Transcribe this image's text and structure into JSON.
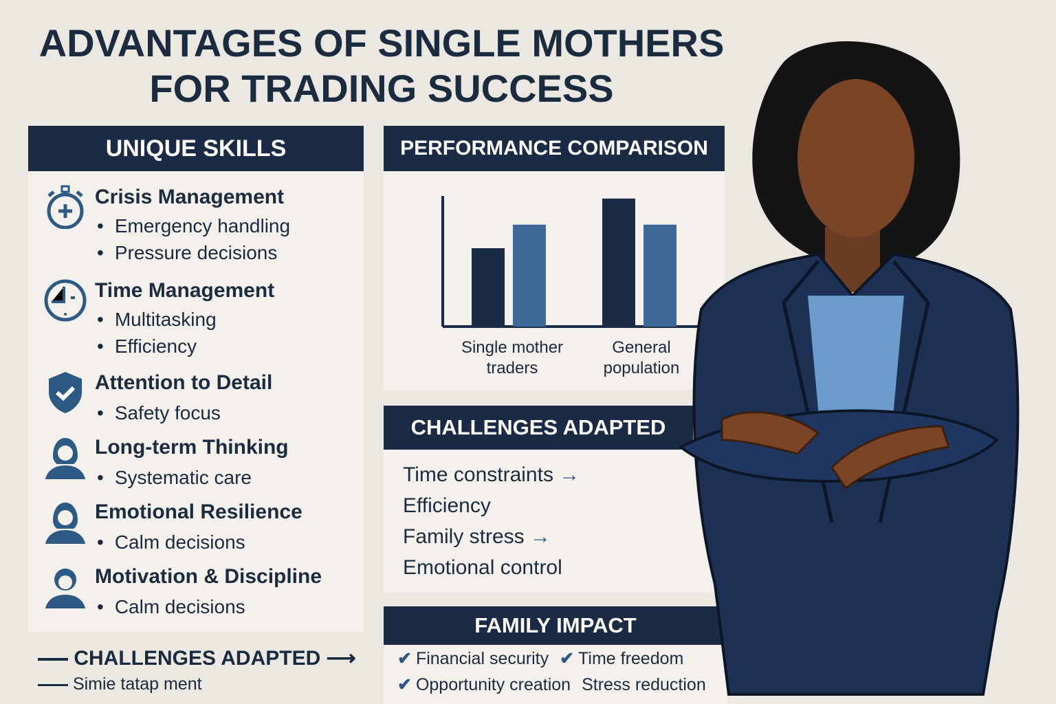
{
  "title": {
    "line1": "ADVANTAGES OF SINGLE MOTHERS",
    "line2": "FOR TRADING SUCCESS"
  },
  "skills": {
    "header": "UNIQUE SKILLS",
    "items": [
      {
        "title": "Crisis Management",
        "icon": "stopwatch-icon",
        "bullets": [
          "Emergency handling",
          "Pressure decisions"
        ]
      },
      {
        "title": "Time Management",
        "icon": "clock-icon",
        "bullets": [
          "Multitasking",
          "Efficiency"
        ]
      },
      {
        "title": "Attention to Detail",
        "icon": "shield-check-icon",
        "bullets": [
          "Safety focus"
        ]
      },
      {
        "title": "Long-term Thinking",
        "icon": "person-icon",
        "bullets": [
          "Systematic care"
        ]
      },
      {
        "title": "Emotional Resilience",
        "icon": "person-icon",
        "bullets": [
          "Calm decisions"
        ]
      },
      {
        "title": "Motivation & Discipline",
        "icon": "person-icon",
        "bullets": [
          "Calm decisions"
        ]
      }
    ]
  },
  "chart_data": {
    "type": "bar",
    "title": "PERFORMANCE COMPARISON",
    "categories": [
      "Single mother traders",
      "General population"
    ],
    "series": [
      {
        "values": [
          60,
          98
        ],
        "color": "#1b2b45"
      },
      {
        "values": [
          78,
          78
        ],
        "color": "#3d6a98"
      }
    ],
    "ylim": [
      0,
      100
    ],
    "grid": false,
    "legend": "none"
  },
  "challenges": {
    "header": "CHALLENGES ADAPTED",
    "items": [
      {
        "text": "Time constraints",
        "arrow": true
      },
      {
        "text": "Efficiency",
        "arrow": false
      },
      {
        "text": "Family stress",
        "arrow": true
      },
      {
        "text": "Emotional control",
        "arrow": false
      }
    ]
  },
  "family": {
    "header": "FAMILY IMPACT",
    "items": [
      {
        "text": "Financial security",
        "check": true
      },
      {
        "text": "Time freedom",
        "check": true
      },
      {
        "text": "Opportunity creation",
        "check": true
      },
      {
        "text": "Stress reduction",
        "check": false
      }
    ]
  },
  "footer": {
    "line1": "CHALLENGES ADAPTED",
    "line2": "Simie tatap ment"
  },
  "colors": {
    "navy": "#1b2b45",
    "blue": "#3d6a98",
    "background": "#ebe7e1",
    "panel": "#f4f1ec"
  }
}
